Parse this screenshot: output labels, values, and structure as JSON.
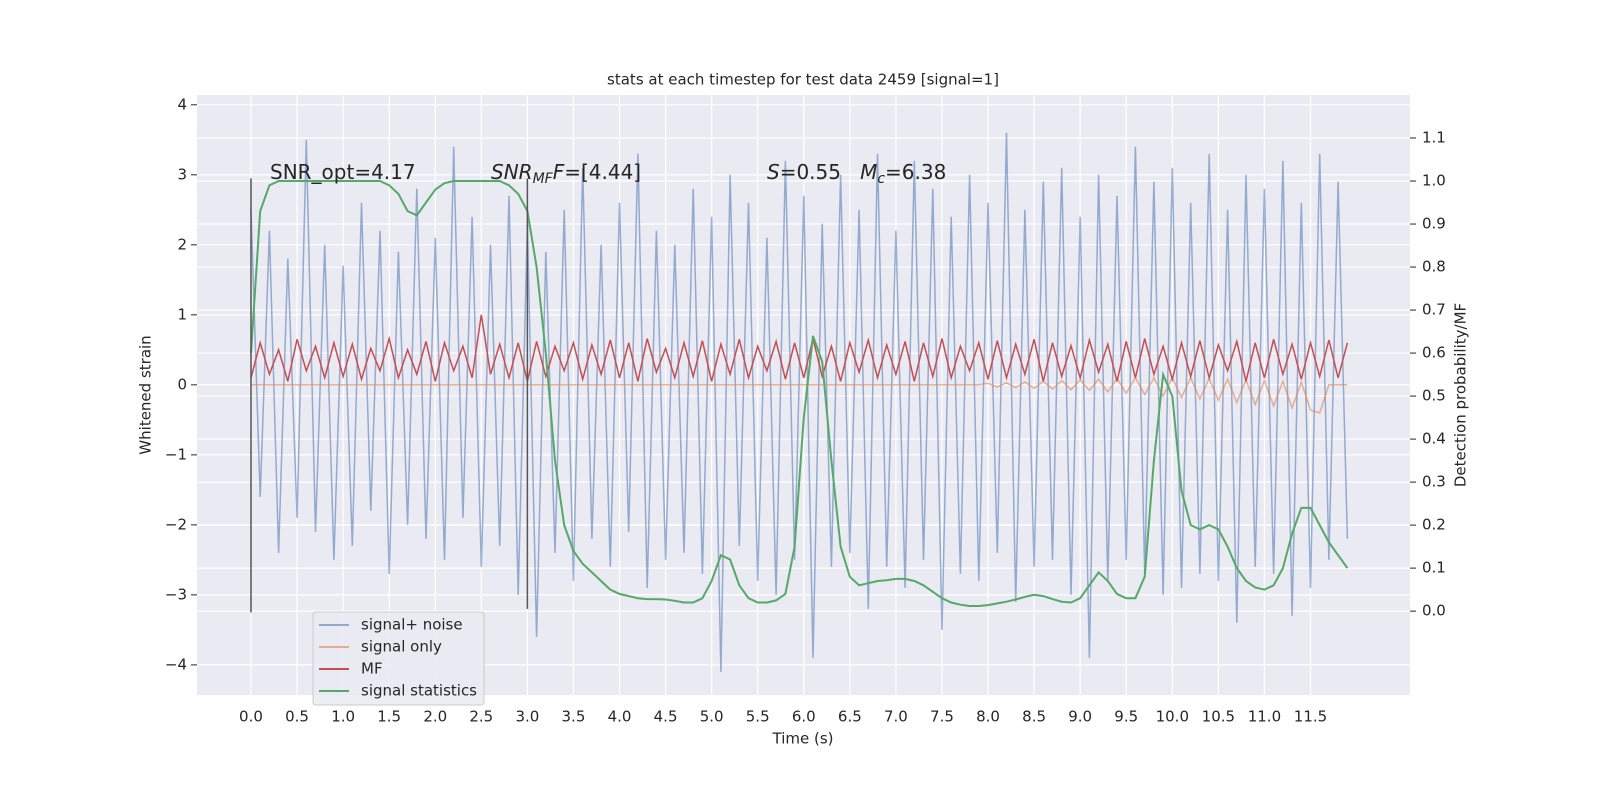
{
  "chart_data": {
    "type": "line",
    "title": "stats at each timestep for test data 2459 [signal=1]",
    "xlabel": "Time (s)",
    "ylabel": "Whitened strain",
    "y2label": "Detection probability/MF",
    "x": [
      0,
      0.1,
      0.2,
      0.3,
      0.4,
      0.5,
      0.6,
      0.7,
      0.8,
      0.9,
      1,
      1.1,
      1.2,
      1.3,
      1.4,
      1.5,
      1.6,
      1.7,
      1.8,
      1.9,
      2,
      2.1,
      2.2,
      2.3,
      2.4,
      2.5,
      2.6,
      2.7,
      2.8,
      2.9,
      3,
      3.1,
      3.2,
      3.3,
      3.4,
      3.5,
      3.6,
      3.7,
      3.8,
      3.9,
      4,
      4.1,
      4.2,
      4.3,
      4.4,
      4.5,
      4.6,
      4.7,
      4.8,
      4.9,
      5,
      5.1,
      5.2,
      5.3,
      5.4,
      5.5,
      5.6,
      5.7,
      5.8,
      5.9,
      6,
      6.1,
      6.2,
      6.3,
      6.4,
      6.5,
      6.6,
      6.7,
      6.8,
      6.9,
      7,
      7.1,
      7.2,
      7.3,
      7.4,
      7.5,
      7.6,
      7.7,
      7.8,
      7.9,
      8,
      8.1,
      8.2,
      8.3,
      8.4,
      8.5,
      8.6,
      8.7,
      8.8,
      8.9,
      9,
      9.1,
      9.2,
      9.3,
      9.4,
      9.5,
      9.6,
      9.7,
      9.8,
      9.9,
      10,
      10.1,
      10.2,
      10.3,
      10.4,
      10.5,
      10.6,
      10.7,
      10.8,
      10.9,
      11,
      11.1,
      11.2,
      11.3,
      11.4,
      11.5,
      11.6,
      11.7,
      11.8,
      11.9
    ],
    "series": [
      {
        "name": "signal+ noise",
        "color": "#4c72b0",
        "opacity": 0.55,
        "axis": "y",
        "values": [
          2.5,
          -1.6,
          2.2,
          -2.4,
          1.8,
          -1.9,
          3.5,
          -2.1,
          2.0,
          -2.5,
          1.7,
          -2.3,
          2.6,
          -1.8,
          2.2,
          -2.7,
          1.9,
          -2.0,
          2.8,
          -2.2,
          2.1,
          -2.5,
          3.4,
          -1.9,
          2.4,
          -2.6,
          2.0,
          -2.3,
          2.7,
          -3.0,
          2.3,
          -3.6,
          1.9,
          -2.4,
          2.5,
          -2.8,
          3.1,
          -2.2,
          2.0,
          -2.6,
          2.6,
          -2.1,
          3.3,
          -2.9,
          2.2,
          -2.5,
          2.0,
          -2.4,
          2.8,
          -2.7,
          2.4,
          -4.1,
          3.0,
          -2.3,
          2.6,
          -2.8,
          2.1,
          -3.0,
          3.2,
          -2.5,
          2.7,
          -3.9,
          2.3,
          -2.6,
          3.0,
          -2.4,
          2.5,
          -3.2,
          3.3,
          -2.6,
          2.2,
          -2.9,
          3.2,
          -2.5,
          2.8,
          -3.5,
          2.4,
          -2.7,
          3.0,
          -2.8,
          2.6,
          -2.4,
          3.6,
          -3.1,
          2.5,
          -2.6,
          2.9,
          -2.5,
          3.1,
          -3.0,
          2.4,
          -3.9,
          3.0,
          -2.8,
          2.7,
          -2.5,
          3.4,
          -2.7,
          2.9,
          -3.0,
          3.1,
          -2.9,
          2.6,
          -2.7,
          3.3,
          -2.8,
          2.5,
          -3.4,
          3.0,
          -2.6,
          2.8,
          -2.7,
          3.2,
          -3.3,
          2.6,
          -2.9,
          3.3,
          -2.5,
          2.9,
          -2.2
        ]
      },
      {
        "name": "signal only",
        "color": "#dd8452",
        "opacity": 0.6,
        "axis": "y",
        "values": [
          0,
          0,
          0,
          0,
          0,
          0,
          0,
          0,
          0,
          0,
          0,
          0,
          0,
          0,
          0,
          0,
          0,
          0,
          0,
          0,
          0,
          0,
          0,
          0,
          0,
          0,
          0,
          0,
          0,
          0,
          0,
          0,
          0,
          0,
          0,
          0,
          0,
          0,
          0,
          0,
          0,
          0,
          0,
          0,
          0,
          0,
          0,
          0,
          0,
          0,
          0,
          0,
          0,
          0,
          0,
          0,
          0,
          0,
          0,
          0,
          0,
          0,
          0,
          0,
          0,
          0,
          0,
          0,
          0,
          0,
          0,
          0,
          0,
          0,
          0,
          0,
          0,
          0,
          0,
          0,
          0.02,
          -0.03,
          0.03,
          -0.04,
          0.04,
          -0.05,
          0.05,
          -0.06,
          0.06,
          -0.07,
          0.07,
          -0.08,
          0.08,
          -0.1,
          0.09,
          -0.12,
          0.1,
          -0.14,
          0.1,
          -0.16,
          0.1,
          -0.18,
          0.1,
          -0.2,
          0.09,
          -0.22,
          0.08,
          -0.25,
          0.07,
          -0.28,
          0.06,
          -0.3,
          0.05,
          -0.33,
          0.04,
          -0.36,
          -0.4,
          0,
          0,
          0
        ]
      },
      {
        "name": "MF",
        "color": "#c44e52",
        "opacity": 1,
        "axis": "y",
        "values": [
          0.1,
          0.6,
          0.15,
          0.5,
          0.05,
          0.65,
          0.2,
          0.55,
          0.1,
          0.6,
          0.12,
          0.58,
          0.08,
          0.52,
          0.2,
          0.66,
          0.1,
          0.5,
          0.15,
          0.62,
          0.05,
          0.6,
          0.2,
          0.55,
          0.1,
          1.0,
          0.15,
          0.58,
          0.1,
          0.6,
          0.05,
          0.62,
          0.12,
          0.55,
          0.2,
          0.6,
          0.08,
          0.57,
          0.15,
          0.64,
          0.1,
          0.6,
          0.05,
          0.66,
          0.18,
          0.52,
          0.1,
          0.6,
          0.12,
          0.63,
          0.05,
          0.58,
          0.15,
          0.65,
          0.1,
          0.55,
          0.2,
          0.62,
          0.08,
          0.6,
          0.1,
          0.66,
          0.12,
          0.55,
          0.05,
          0.6,
          0.18,
          0.64,
          0.1,
          0.57,
          0.15,
          0.62,
          0.05,
          0.6,
          0.12,
          0.66,
          0.1,
          0.55,
          0.2,
          0.6,
          0.08,
          0.63,
          0.1,
          0.58,
          0.15,
          0.65,
          0.05,
          0.6,
          0.12,
          0.56,
          0.1,
          0.64,
          0.18,
          0.58,
          0.05,
          0.62,
          0.1,
          0.66,
          0.15,
          0.55,
          0.08,
          0.6,
          0.12,
          0.63,
          0.1,
          0.57,
          0.2,
          0.62,
          0.05,
          0.6,
          0.1,
          0.65,
          0.15,
          0.58,
          0.08,
          0.6,
          0.12,
          0.64,
          0.1,
          0.6
        ]
      },
      {
        "name": "signal statistics",
        "color": "#55a868",
        "opacity": 1,
        "axis": "y2",
        "values": [
          0.6,
          0.93,
          0.99,
          1.0,
          1.0,
          1.0,
          1.0,
          1.0,
          1.0,
          1.0,
          1.0,
          1.0,
          1.0,
          1.0,
          1.0,
          0.99,
          0.97,
          0.93,
          0.92,
          0.95,
          0.98,
          0.995,
          1.0,
          1.0,
          1.0,
          1.0,
          1.0,
          1.0,
          0.99,
          0.97,
          0.93,
          0.8,
          0.6,
          0.35,
          0.2,
          0.14,
          0.11,
          0.09,
          0.07,
          0.05,
          0.04,
          0.035,
          0.03,
          0.028,
          0.028,
          0.027,
          0.024,
          0.02,
          0.02,
          0.03,
          0.07,
          0.13,
          0.12,
          0.06,
          0.03,
          0.02,
          0.02,
          0.025,
          0.04,
          0.15,
          0.45,
          0.64,
          0.58,
          0.35,
          0.15,
          0.08,
          0.06,
          0.065,
          0.07,
          0.072,
          0.075,
          0.075,
          0.07,
          0.06,
          0.045,
          0.03,
          0.02,
          0.015,
          0.012,
          0.012,
          0.014,
          0.018,
          0.022,
          0.027,
          0.033,
          0.038,
          0.035,
          0.028,
          0.022,
          0.02,
          0.03,
          0.06,
          0.09,
          0.07,
          0.04,
          0.03,
          0.03,
          0.08,
          0.35,
          0.55,
          0.5,
          0.28,
          0.2,
          0.19,
          0.2,
          0.19,
          0.15,
          0.1,
          0.07,
          0.055,
          0.05,
          0.06,
          0.1,
          0.18,
          0.24,
          0.24,
          0.2,
          0.16,
          0.13,
          0.1
        ]
      }
    ],
    "vlines": [
      {
        "x": 0,
        "ymin": -3.25,
        "ymax": 2.95,
        "color": "#555555"
      },
      {
        "x": 3,
        "ymin": -3.2,
        "ymax": 2.95,
        "color": "#555555"
      }
    ],
    "annotations": [
      [
        {
          "text": "SNR_opt=4.17"
        }
      ],
      [
        {
          "text": "SNR",
          "italic": true
        },
        {
          "text": "MF",
          "italic": true,
          "sub": true
        },
        {
          "text": "F",
          "italic": true
        },
        {
          "text": "=[4.44]"
        }
      ],
      [
        {
          "text": "S",
          "italic": true
        },
        {
          "text": "=0.55   "
        },
        {
          "text": "M",
          "italic": true
        },
        {
          "text": "c",
          "italic": true,
          "sub": true
        },
        {
          "text": "=6.38"
        }
      ]
    ],
    "xlim": [
      -0.586,
      12.58
    ],
    "ylim": [
      -4.43,
      4.14
    ],
    "y2lim": [
      -0.195,
      1.2
    ],
    "xticks": [
      {
        "value": 0,
        "label": "0.0"
      },
      0.5,
      {
        "value": 1,
        "label": "1.0"
      },
      1.5,
      {
        "value": 2,
        "label": "2.0"
      },
      2.5,
      {
        "value": 3,
        "label": "3.0"
      },
      3.5,
      {
        "value": 4,
        "label": "4.0"
      },
      4.5,
      {
        "value": 5,
        "label": "5.0"
      },
      5.5,
      {
        "value": 6,
        "label": "6.0"
      },
      6.5,
      {
        "value": 7,
        "label": "7.0"
      },
      7.5,
      {
        "value": 8,
        "label": "8.0"
      },
      8.5,
      {
        "value": 9,
        "label": "9.0"
      },
      9.5,
      {
        "value": 10,
        "label": "10.0"
      },
      10.5,
      {
        "value": 11,
        "label": "11.0"
      },
      11.5
    ],
    "yticks": [
      {
        "value": -4,
        "label": "−4"
      },
      {
        "value": -3,
        "label": "−3"
      },
      {
        "value": -2,
        "label": "−2"
      },
      {
        "value": -1,
        "label": "−1"
      },
      0,
      1,
      2,
      3,
      4
    ],
    "y2ticks": [
      {
        "value": 0,
        "label": "0.0"
      },
      0.1,
      0.2,
      0.3,
      0.4,
      0.5,
      0.6,
      0.7,
      0.8,
      0.9,
      {
        "value": 1,
        "label": "1.0"
      },
      1.1
    ],
    "grid": true,
    "legend_loc": "lower left"
  }
}
